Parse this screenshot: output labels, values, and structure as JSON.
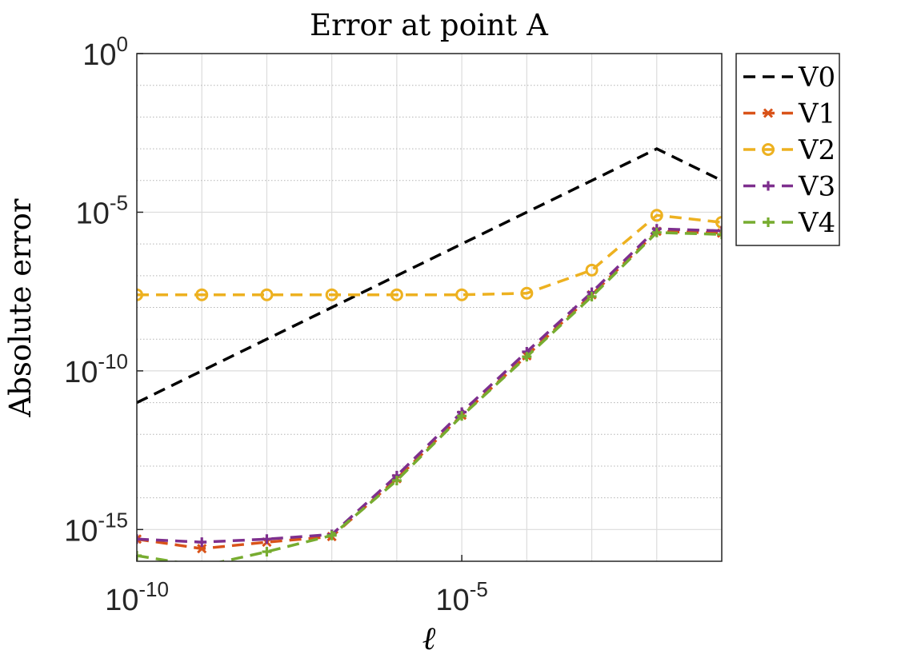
{
  "chart_data": {
    "type": "line",
    "title": "Error at point A",
    "xlabel": "ℓ",
    "ylabel": "Absolute error",
    "x_scale": "log",
    "y_scale": "log",
    "xlim": [
      1e-10,
      0.1
    ],
    "ylim": [
      1e-16,
      1
    ],
    "x_ticks": [
      {
        "value": 1e-10,
        "base": "10",
        "exp": "-10"
      },
      {
        "value": 1e-05,
        "base": "10",
        "exp": "-5"
      }
    ],
    "y_ticks": [
      {
        "value": 1,
        "base": "10",
        "exp": "0"
      },
      {
        "value": 1e-05,
        "base": "10",
        "exp": "-5"
      },
      {
        "value": 1e-10,
        "base": "10",
        "exp": "-10"
      },
      {
        "value": 1e-15,
        "base": "10",
        "exp": "-15"
      }
    ],
    "grid": true,
    "legend_position": "outside-top-right",
    "series": [
      {
        "name": "V0",
        "color": "#000000",
        "marker": "none",
        "points": [
          [
            1e-10,
            1e-11
          ],
          [
            1e-09,
            1e-10
          ],
          [
            1e-08,
            1e-09
          ],
          [
            1e-07,
            1e-08
          ],
          [
            1e-06,
            1e-07
          ],
          [
            1e-05,
            1e-06
          ],
          [
            0.0001,
            1e-05
          ],
          [
            0.001,
            0.0001
          ],
          [
            0.01,
            0.001
          ],
          [
            0.1,
            0.0001
          ]
        ]
      },
      {
        "name": "V1",
        "color": "#d95319",
        "marker": "x",
        "points": [
          [
            1e-10,
            5e-16
          ],
          [
            1e-09,
            2.5e-16
          ],
          [
            1e-08,
            4e-16
          ],
          [
            1e-07,
            6e-16
          ],
          [
            1e-06,
            4e-14
          ],
          [
            1e-05,
            4e-12
          ],
          [
            0.0001,
            3e-10
          ],
          [
            0.001,
            2.5e-08
          ],
          [
            0.01,
            2.5e-06
          ],
          [
            0.1,
            2.2e-06
          ]
        ]
      },
      {
        "name": "V2",
        "color": "#edb120",
        "marker": "o",
        "points": [
          [
            1e-10,
            2.5e-08
          ],
          [
            1e-09,
            2.5e-08
          ],
          [
            1e-08,
            2.5e-08
          ],
          [
            1e-07,
            2.5e-08
          ],
          [
            1e-06,
            2.5e-08
          ],
          [
            1e-05,
            2.5e-08
          ],
          [
            0.0001,
            2.8e-08
          ],
          [
            0.001,
            1.5e-07
          ],
          [
            0.01,
            8e-06
          ],
          [
            0.1,
            4.8e-06
          ]
        ]
      },
      {
        "name": "V3",
        "color": "#7e2f8e",
        "marker": "+",
        "points": [
          [
            1e-10,
            5e-16
          ],
          [
            1e-09,
            4e-16
          ],
          [
            1e-08,
            5e-16
          ],
          [
            1e-07,
            7e-16
          ],
          [
            1e-06,
            5e-14
          ],
          [
            1e-05,
            5e-12
          ],
          [
            0.0001,
            4e-10
          ],
          [
            0.001,
            3e-08
          ],
          [
            0.01,
            3e-06
          ],
          [
            0.1,
            2.6e-06
          ]
        ]
      },
      {
        "name": "V4",
        "color": "#77ac30",
        "marker": "+",
        "points": [
          [
            1e-10,
            1.5e-16
          ],
          [
            1e-09,
            7e-17
          ],
          [
            1e-08,
            2e-16
          ],
          [
            1e-07,
            6.5e-16
          ],
          [
            1e-06,
            3.5e-14
          ],
          [
            1e-05,
            3.8e-12
          ],
          [
            0.0001,
            2.8e-10
          ],
          [
            0.001,
            2.2e-08
          ],
          [
            0.01,
            2.3e-06
          ],
          [
            0.1,
            2e-06
          ]
        ]
      }
    ]
  }
}
